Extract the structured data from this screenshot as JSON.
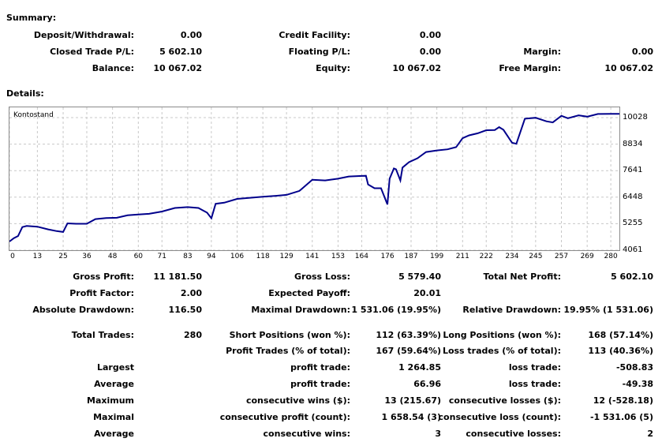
{
  "headings": {
    "summary": "Summary:",
    "details": "Details:"
  },
  "summary": {
    "deposit_label": "Deposit/Withdrawal:",
    "deposit_value": "0.00",
    "credit_label": "Credit Facility:",
    "credit_value": "0.00",
    "closed_label": "Closed Trade P/L:",
    "closed_value": "5 602.10",
    "floating_label": "Floating P/L:",
    "floating_value": "0.00",
    "margin_label": "Margin:",
    "margin_value": "0.00",
    "balance_label": "Balance:",
    "balance_value": "10 067.02",
    "equity_label": "Equity:",
    "equity_value": "10 067.02",
    "free_margin_label": "Free Margin:",
    "free_margin_value": "10 067.02"
  },
  "chart_data": {
    "type": "line",
    "title": "Kontostand",
    "series_color": "#00008b",
    "xlim": [
      0,
      284
    ],
    "ylim": [
      4061,
      10490
    ],
    "y_ticks": [
      "10028",
      "8834",
      "7641",
      "6448",
      "5255",
      "4061"
    ],
    "y_tick_values": [
      10028,
      8834,
      7641,
      6448,
      5255,
      4061
    ],
    "x_ticks": [
      "0",
      "13",
      "25",
      "36",
      "48",
      "60",
      "71",
      "83",
      "94",
      "106",
      "118",
      "129",
      "141",
      "153",
      "164",
      "176",
      "187",
      "199",
      "211",
      "222",
      "234",
      "245",
      "257",
      "269",
      "280"
    ],
    "grid": true,
    "x": [
      0,
      2,
      4,
      6,
      8,
      13,
      18,
      22,
      25,
      27,
      31,
      36,
      40,
      45,
      50,
      55,
      60,
      65,
      71,
      77,
      83,
      88,
      92,
      94,
      96,
      100,
      106,
      112,
      118,
      124,
      129,
      135,
      141,
      147,
      153,
      158,
      163,
      166,
      167,
      170,
      173,
      176,
      177,
      179,
      180,
      182,
      183,
      186,
      190,
      194,
      199,
      204,
      208,
      211,
      214,
      218,
      222,
      226,
      228,
      230,
      234,
      236,
      240,
      245,
      250,
      253,
      257,
      260,
      265,
      269,
      274,
      280,
      284
    ],
    "y": [
      4450,
      4600,
      4700,
      5100,
      5150,
      5120,
      5000,
      4920,
      4880,
      5270,
      5250,
      5250,
      5460,
      5510,
      5520,
      5630,
      5670,
      5700,
      5800,
      5960,
      6000,
      5960,
      5750,
      5500,
      6150,
      6200,
      6370,
      6420,
      6470,
      6510,
      6550,
      6730,
      7230,
      7200,
      7280,
      7380,
      7400,
      7410,
      7020,
      6850,
      6850,
      6120,
      7280,
      7740,
      7700,
      7200,
      7780,
      8020,
      8200,
      8480,
      8550,
      8600,
      8700,
      9100,
      9230,
      9320,
      9460,
      9470,
      9600,
      9480,
      8900,
      8850,
      9980,
      10020,
      9860,
      9810,
      10110,
      10000,
      10130,
      10070,
      10190,
      10200,
      10200
    ]
  },
  "details_rows": [
    [
      {
        "label": "Gross Profit:",
        "value": "11 181.50"
      },
      {
        "label": "Gross Loss:",
        "value": "5 579.40"
      },
      {
        "label": "Total Net Profit:",
        "value": "5 602.10"
      }
    ],
    [
      {
        "label": "Profit Factor:",
        "value": "2.00"
      },
      {
        "label": "Expected Payoff:",
        "value": "20.01"
      },
      {
        "label": "",
        "value": ""
      }
    ],
    [
      {
        "label": "Absolute Drawdown:",
        "value": "116.50"
      },
      {
        "label": "Maximal Drawdown:",
        "value": "1 531.06 (19.95%)"
      },
      {
        "label": "Relative Drawdown:",
        "value": "19.95% (1 531.06)"
      }
    ]
  ],
  "trades_rows": [
    [
      {
        "label": "Total Trades:",
        "value": "280"
      },
      {
        "label": "Short Positions (won %):",
        "value": "112 (63.39%)"
      },
      {
        "label": "Long Positions (won %):",
        "value": "168 (57.14%)"
      }
    ],
    [
      {
        "label": "",
        "value": ""
      },
      {
        "label": "Profit Trades (% of total):",
        "value": "167 (59.64%)"
      },
      {
        "label": "Loss trades (% of total):",
        "value": "113 (40.36%)"
      }
    ],
    [
      {
        "label": "Largest",
        "value": ""
      },
      {
        "label": "profit trade:",
        "value": "1 264.85"
      },
      {
        "label": "loss trade:",
        "value": "-508.83"
      }
    ],
    [
      {
        "label": "Average",
        "value": ""
      },
      {
        "label": "profit trade:",
        "value": "66.96"
      },
      {
        "label": "loss trade:",
        "value": "-49.38"
      }
    ],
    [
      {
        "label": "Maximum",
        "value": ""
      },
      {
        "label": "consecutive wins ($):",
        "value": "13 (215.67)"
      },
      {
        "label": "consecutive losses ($):",
        "value": "12 (-528.18)"
      }
    ],
    [
      {
        "label": "Maximal",
        "value": ""
      },
      {
        "label": "consecutive profit (count):",
        "value": "1 658.54 (3)"
      },
      {
        "label": "consecutive loss (count):",
        "value": "-1 531.06 (5)"
      }
    ],
    [
      {
        "label": "Average",
        "value": ""
      },
      {
        "label": "consecutive wins:",
        "value": "3"
      },
      {
        "label": "consecutive losses:",
        "value": "2"
      }
    ]
  ]
}
